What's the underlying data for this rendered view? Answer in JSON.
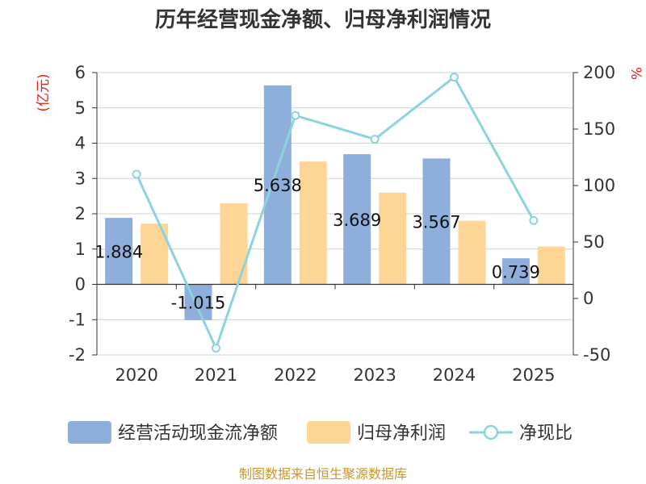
{
  "chart_data": {
    "type": "bar",
    "title": "历年经营现金净额、归母净利润情况",
    "categories": [
      "2020",
      "2021",
      "2022",
      "2023",
      "2024",
      "2025"
    ],
    "series": [
      {
        "name": "经营活动现金流净额",
        "type": "bar",
        "axis": "left",
        "values": [
          1.884,
          -1.015,
          5.638,
          3.689,
          3.567,
          0.739
        ],
        "data_labels": [
          "1.884",
          "-1.015",
          "5.638",
          "3.689",
          "3.567",
          "0.739"
        ]
      },
      {
        "name": "归母净利润",
        "type": "bar",
        "axis": "left",
        "values": [
          1.72,
          2.3,
          3.48,
          2.6,
          1.8,
          1.07
        ]
      },
      {
        "name": "净现比",
        "type": "line",
        "axis": "right",
        "values": [
          110,
          -44,
          162,
          141,
          196,
          69
        ]
      }
    ],
    "left_axis": {
      "label": "(亿元)",
      "ylim": [
        -2,
        6
      ],
      "ticks": [
        "6",
        "5",
        "4",
        "3",
        "2",
        "1",
        "0",
        "-1",
        "-2"
      ]
    },
    "right_axis": {
      "label": "%",
      "ylim": [
        -50,
        200
      ],
      "ticks": [
        "200",
        "150",
        "100",
        "50",
        "0",
        "-50"
      ]
    },
    "legend_position": "bottom",
    "grid": true,
    "source": "制图数据来自恒生聚源数据库",
    "colors": {
      "cash": "#8eaedb",
      "profit": "#fdd594",
      "ratio": "#8cd3dc",
      "unit": "#e0201b",
      "source": "#c8962a",
      "grid": "#d0d0d0",
      "axis": "#333333"
    }
  }
}
